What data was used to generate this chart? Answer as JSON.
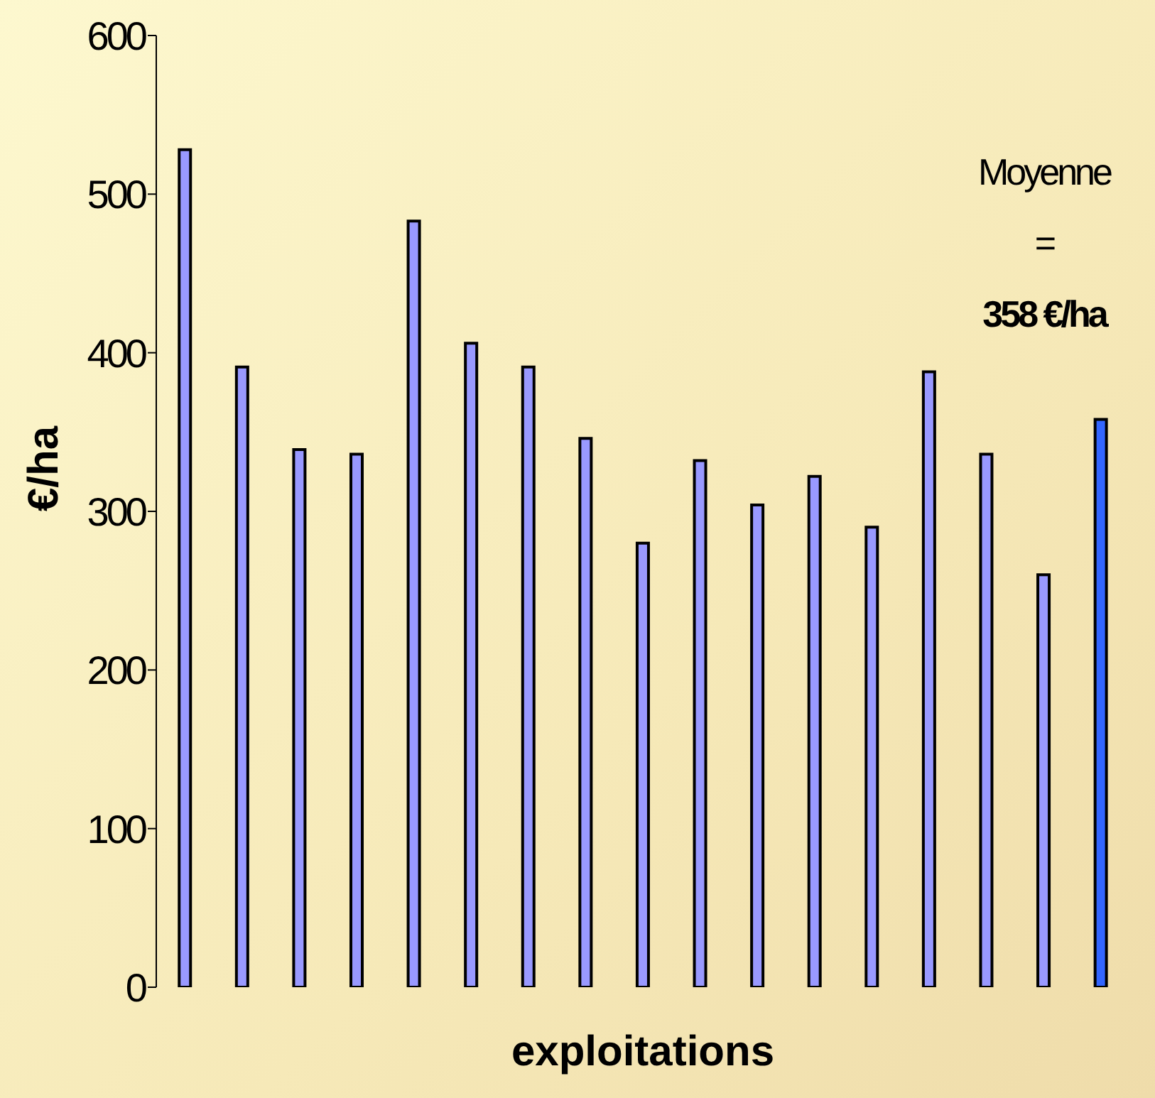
{
  "chart_data": {
    "type": "bar",
    "xlabel": "exploitations",
    "ylabel": "€/ha",
    "categories": [
      null,
      null,
      null,
      null,
      null,
      null,
      null,
      null,
      null,
      null,
      null,
      null,
      null,
      null,
      null,
      null,
      null
    ],
    "values": [
      528,
      391,
      339,
      336,
      483,
      406,
      391,
      346,
      280,
      332,
      304,
      322,
      290,
      388,
      336,
      260,
      358
    ],
    "colors": [
      "#9999ff",
      "#9999ff",
      "#9999ff",
      "#9999ff",
      "#9999ff",
      "#9999ff",
      "#9999ff",
      "#9999ff",
      "#9999ff",
      "#9999ff",
      "#9999ff",
      "#9999ff",
      "#9999ff",
      "#9999ff",
      "#9999ff",
      "#9999ff",
      "#3366ff"
    ],
    "ylim": [
      0,
      600
    ],
    "yticks": [
      0,
      100,
      200,
      300,
      400,
      500,
      600
    ],
    "annotations": [
      "Moyenne",
      "=",
      "358 €/ha"
    ]
  }
}
